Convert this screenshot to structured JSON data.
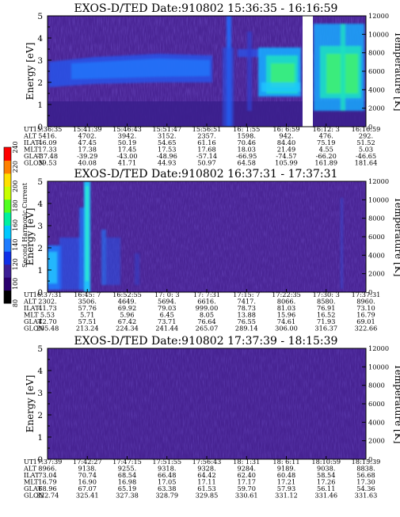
{
  "chart_data": [
    {
      "type": "heatmap",
      "title": "EXOS-D/TED   Date:910802  15:36:35 - 16:16:59",
      "ylabel": "Energy [eV]",
      "ylabel_right": "Temperature [K]",
      "ylim": [
        0,
        5
      ],
      "ylim_right": [
        0,
        12000
      ],
      "yticks": [
        "0",
        "1",
        "2",
        "3",
        "4",
        "5"
      ],
      "yticks_right": [
        "0",
        "2000",
        "4000",
        "6000",
        "8000",
        "10000",
        "12000"
      ],
      "data_gap": "16:07:30 - 16:09:00",
      "row_labels": [
        "UT",
        "ALT",
        "ILAT",
        "MLT",
        "GLAT",
        "GLON"
      ],
      "columns": [
        [
          "15:36:35",
          "5416.",
          "46.09",
          "17.33",
          "-37.48",
          "39.53"
        ],
        [
          "15:41:39",
          "4702.",
          "47.45",
          "17.38",
          "-39.29",
          "40.08"
        ],
        [
          "15:46:43",
          "3942.",
          "50.19",
          "17.45",
          "-43.00",
          "41.71"
        ],
        [
          "15:51:47",
          "3152.",
          "54.65",
          "17.53",
          "-48.96",
          "44.93"
        ],
        [
          "15:56:51",
          "2357.",
          "61.16",
          "17.68",
          "-57.14",
          "50.97"
        ],
        [
          "16: 1:55",
          "1598.",
          "70.46",
          "18.03",
          "-66.95",
          "64.58"
        ],
        [
          "16: 6:59",
          "942.",
          "84.40",
          "21.49",
          "-74.57",
          "105.99"
        ],
        [
          "16:12: 3",
          "476.",
          "75.19",
          "4.55",
          "-66.20",
          "161.89"
        ],
        [
          "16:16:59",
          "292.",
          "51.52",
          "5.03",
          "-46.65",
          "181.64"
        ]
      ]
    },
    {
      "type": "heatmap",
      "title": "EXOS-D/TED   Date:910802  16:37:31 - 17:37:31",
      "ylabel": "Energy [eV]",
      "ylabel_right": "Temperature [K]",
      "ylim": [
        0,
        5
      ],
      "ylim_right": [
        0,
        12000
      ],
      "yticks": [
        "0",
        "1",
        "2",
        "3",
        "4",
        "5"
      ],
      "yticks_right": [
        "0",
        "2000",
        "4000",
        "6000",
        "8000",
        "10000",
        "12000"
      ],
      "row_labels": [
        "UT",
        "ALT",
        "ILAT",
        "MLT",
        "GLAT",
        "GLON"
      ],
      "columns": [
        [
          "16:37:31",
          "2302.",
          "41.73",
          "5.53",
          "42.70",
          "205.48"
        ],
        [
          "16:45: 7",
          "3506.",
          "57.76",
          "5.71",
          "57.51",
          "213.24"
        ],
        [
          "16:52:55",
          "4649.",
          "69.92",
          "5.96",
          "67.42",
          "224.34"
        ],
        [
          "17: 0: 3",
          "5694.",
          "79.03",
          "6.45",
          "73.71",
          "241.44"
        ],
        [
          "17: 7:31",
          "6616.",
          "999.00",
          "8.05",
          "76.64",
          "265.07"
        ],
        [
          "17:15: 7",
          "7417.",
          "78.73",
          "13.88",
          "76.55",
          "289.14"
        ],
        [
          "17:22:35",
          "8066.",
          "81.03",
          "15.96",
          "74.61",
          "306.00"
        ],
        [
          "17:30: 3",
          "8580.",
          "76.91",
          "16.52",
          "71.93",
          "316.37"
        ],
        [
          "17:37:31",
          "8960.",
          "73.10",
          "16.79",
          "69.01",
          "322.66"
        ]
      ]
    },
    {
      "type": "heatmap",
      "title": "EXOS-D/TED   Date:910802  17:37:39 - 18:15:39",
      "ylabel": "Energy [eV]",
      "ylabel_right": "Temperature [K]",
      "ylim": [
        0,
        5
      ],
      "ylim_right": [
        0,
        12000
      ],
      "yticks": [
        "0",
        "1",
        "2",
        "3",
        "4",
        "5"
      ],
      "yticks_right": [
        "0",
        "2000",
        "4000",
        "6000",
        "8000",
        "10000",
        "12000"
      ],
      "row_labels": [
        "UT",
        "ALT",
        "ILAT",
        "MLT",
        "GLAT",
        "GLON"
      ],
      "columns": [
        [
          "17:37:39",
          "8966.",
          "73.04",
          "16.79",
          "68.96",
          "322.74"
        ],
        [
          "17:42:27",
          "9138.",
          "70.74",
          "16.90",
          "67.07",
          "325.41"
        ],
        [
          "17:47:15",
          "9255.",
          "68.54",
          "16.98",
          "65.19",
          "327.38"
        ],
        [
          "17:51:55",
          "9318.",
          "66.48",
          "17.05",
          "63.38",
          "328.79"
        ],
        [
          "17:56:43",
          "9328.",
          "64.42",
          "17.11",
          "61.53",
          "329.85"
        ],
        [
          "18: 1:31",
          "9284.",
          "62.40",
          "17.17",
          "59.70",
          "330.61"
        ],
        [
          "18: 6:11",
          "9189.",
          "60.48",
          "17.21",
          "57.93",
          "331.12"
        ],
        [
          "18:10:59",
          "9038.",
          "58.54",
          "17.26",
          "56.11",
          "331.46"
        ],
        [
          "18:15:39",
          "8838.",
          "56.68",
          "17.30",
          "54.36",
          "331.63"
        ]
      ]
    }
  ],
  "colorbar": {
    "label": "Second Harmonic Current",
    "ticks": [
      "80",
      "100",
      "120",
      "140",
      "160",
      "180",
      "200",
      "220",
      "240"
    ],
    "colors": [
      "#000000",
      "#2a006e",
      "#3c1f96",
      "#1030e8",
      "#1e7cff",
      "#00c8ff",
      "#00f0a0",
      "#50ff20",
      "#c8ff00",
      "#ffe000",
      "#ff8000",
      "#ff0000"
    ]
  }
}
